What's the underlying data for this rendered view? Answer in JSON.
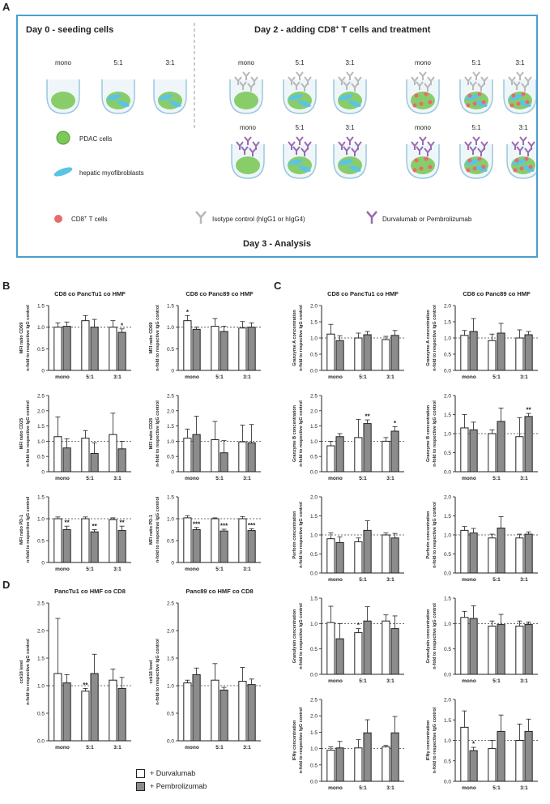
{
  "panel_letters": {
    "a": "A",
    "b": "B",
    "c": "C",
    "d": "D"
  },
  "panelA": {
    "day0_title": "Day 0 - seeding cells",
    "day2_title_prefix": "Day 2 - adding CD8",
    "day2_title_sup": "+",
    "day2_title_suffix": " T cells and treatment",
    "well_labels": [
      "mono",
      "5:1",
      "3:1"
    ],
    "legend_pdac": "PDAC cells",
    "legend_hmf": "hepatic myofibroblasts",
    "legend_cd8_prefix": "CD8",
    "legend_cd8_sup": "+",
    "legend_cd8_suffix": " T cells",
    "legend_isotype": "Isotype control (hIgG1 or hIgG4)",
    "legend_durva": "Durvalumab or Pembrolizumab",
    "day3": "Day 3 - Analysis",
    "colors": {
      "border": "#4a9fd0",
      "pdac": "#7cc95a",
      "hmf": "#5bc3e6",
      "cd8": "#e86b6b",
      "isotype": "#b8b8b8",
      "antibody": "#9a6bb0"
    }
  },
  "legend": {
    "durvalumab": "+ Durvalumab",
    "pembrolizumab": "+ Pembrolizumab"
  },
  "colors": {
    "white_bar": "#ffffff",
    "grey_bar": "#8c8c8c",
    "stroke": "#222222"
  },
  "chart_data": [
    {
      "type": "bar",
      "title": "CD8 co PancTu1 co HMF",
      "ylabel": [
        "MFI ratio CD69",
        "n-fold to respective IgG control"
      ],
      "categories": [
        "mono",
        "5:1",
        "3:1"
      ],
      "ylim": [
        0,
        1.5
      ],
      "ticks": [
        "0",
        "0.5",
        "1.0",
        "1.5"
      ],
      "tickvals": [
        0,
        0.5,
        1,
        1.5
      ],
      "series": [
        {
          "name": "+ Durvalumab",
          "values": [
            1.0,
            1.15,
            1.0
          ],
          "errors": [
            0.1,
            0.12,
            0.15
          ]
        },
        {
          "name": "+ Pembrolizumab",
          "values": [
            1.02,
            1.0,
            0.88
          ],
          "errors": [
            0.1,
            0.18,
            0.08
          ]
        }
      ],
      "sig": [
        {
          "cat": 2,
          "series": 1,
          "text": "*"
        }
      ]
    },
    {
      "type": "bar",
      "title": "CD8 co Panc89 co HMF",
      "ylabel": [
        "MFI ratio CD69",
        "n-fold to respective IgG control"
      ],
      "categories": [
        "mono",
        "5:1",
        "3:1"
      ],
      "ylim": [
        0,
        1.5
      ],
      "ticks": [
        "0",
        "0.5",
        "1.0",
        "1.5"
      ],
      "tickvals": [
        0,
        0.5,
        1,
        1.5
      ],
      "series": [
        {
          "name": "+ Durvalumab",
          "values": [
            1.15,
            1.02,
            0.98
          ],
          "errors": [
            0.12,
            0.18,
            0.15
          ]
        },
        {
          "name": "+ Pembrolizumab",
          "values": [
            0.95,
            0.9,
            1.0
          ],
          "errors": [
            0.05,
            0.12,
            0.1
          ]
        }
      ],
      "sig": [
        {
          "cat": 0,
          "series": 0,
          "text": "*"
        }
      ]
    },
    {
      "type": "bar",
      "title": "",
      "ylabel": [
        "MFI ratio CD25",
        "n-fold to respective IgG control"
      ],
      "categories": [
        "mono",
        "5:1",
        "3:1"
      ],
      "ylim": [
        0,
        2.5
      ],
      "ticks": [
        "0",
        "0.5",
        "1.0",
        "1.5",
        "2.0",
        "2.5"
      ],
      "tickvals": [
        0,
        0.5,
        1,
        1.5,
        2,
        2.5
      ],
      "series": [
        {
          "name": "+ Durvalumab",
          "values": [
            1.15,
            1.1,
            1.22
          ],
          "errors": [
            0.65,
            0.25,
            0.7
          ]
        },
        {
          "name": "+ Pembrolizumab",
          "values": [
            0.78,
            0.6,
            0.75
          ],
          "errors": [
            0.3,
            0.35,
            0.25
          ]
        }
      ],
      "sig": []
    },
    {
      "type": "bar",
      "title": "",
      "ylabel": [
        "MFI ratio CD25",
        "n-fold to respective IgG control"
      ],
      "categories": [
        "mono",
        "5:1",
        "3:1"
      ],
      "ylim": [
        0,
        2.5
      ],
      "ticks": [
        "0",
        "0.5",
        "1.0",
        "1.5",
        "2.0",
        "2.5"
      ],
      "tickvals": [
        0,
        0.5,
        1,
        1.5,
        2,
        2.5
      ],
      "series": [
        {
          "name": "+ Durvalumab",
          "values": [
            1.1,
            1.05,
            0.98
          ],
          "errors": [
            0.3,
            0.6,
            0.55
          ]
        },
        {
          "name": "+ Pembrolizumab",
          "values": [
            1.22,
            0.62,
            0.95
          ],
          "errors": [
            0.6,
            0.4,
            0.6
          ]
        }
      ],
      "sig": []
    },
    {
      "type": "bar",
      "title": "",
      "ylabel": [
        "MFI ratio PD-1",
        "n-fold to respective IgG control"
      ],
      "categories": [
        "mono",
        "5:1",
        "3:1"
      ],
      "ylim": [
        0,
        1.5
      ],
      "ticks": [
        "0",
        "0.5",
        "1.0",
        "1.5"
      ],
      "tickvals": [
        0,
        0.5,
        1,
        1.5
      ],
      "series": [
        {
          "name": "+ Durvalumab",
          "values": [
            1.0,
            1.0,
            0.98
          ],
          "errors": [
            0.04,
            0.04,
            0.04
          ]
        },
        {
          "name": "+ Pembrolizumab",
          "values": [
            0.75,
            0.7,
            0.73
          ],
          "errors": [
            0.08,
            0.05,
            0.1
          ]
        }
      ],
      "sig": [
        {
          "cat": 0,
          "series": 1,
          "text": "**"
        },
        {
          "cat": 1,
          "series": 1,
          "text": "**"
        },
        {
          "cat": 2,
          "series": 1,
          "text": "**"
        }
      ]
    },
    {
      "type": "bar",
      "title": "",
      "ylabel": [
        "MFI ratio PD-1",
        "n-fold to respective IgG control"
      ],
      "categories": [
        "mono",
        "5:1",
        "3:1"
      ],
      "ylim": [
        0,
        1.5
      ],
      "ticks": [
        "0",
        "0.5",
        "1.0",
        "1.5"
      ],
      "tickvals": [
        0,
        0.5,
        1,
        1.5
      ],
      "series": [
        {
          "name": "+ Durvalumab",
          "values": [
            1.02,
            1.0,
            1.0
          ],
          "errors": [
            0.05,
            0.02,
            0.05
          ]
        },
        {
          "name": "+ Pembrolizumab",
          "values": [
            0.75,
            0.72,
            0.73
          ],
          "errors": [
            0.05,
            0.04,
            0.04
          ]
        }
      ],
      "sig": [
        {
          "cat": 0,
          "series": 1,
          "text": "***"
        },
        {
          "cat": 1,
          "series": 1,
          "text": "***"
        },
        {
          "cat": 2,
          "series": 1,
          "text": "***"
        }
      ]
    },
    {
      "type": "bar",
      "title": "CD8 co PancTu1 co HMF",
      "ylabel": [
        "Granzyme A concentration",
        "n-fold to respective IgG control"
      ],
      "categories": [
        "mono",
        "5:1",
        "3:1"
      ],
      "ylim": [
        0,
        2.0
      ],
      "ticks": [
        "0.0",
        "0.5",
        "1.0",
        "1.5",
        "2.0"
      ],
      "tickvals": [
        0,
        0.5,
        1,
        1.5,
        2
      ],
      "series": [
        {
          "name": "+ Durvalumab",
          "values": [
            1.12,
            1.0,
            0.95
          ],
          "errors": [
            0.3,
            0.15,
            0.1
          ]
        },
        {
          "name": "+ Pembrolizumab",
          "values": [
            0.92,
            1.1,
            1.08
          ],
          "errors": [
            0.15,
            0.1,
            0.15
          ]
        }
      ],
      "sig": []
    },
    {
      "type": "bar",
      "title": "CD8 co Panc89 co HMF",
      "ylabel": [
        "Granzyme A concentration",
        "n-fold to respective IgG control"
      ],
      "categories": [
        "mono",
        "5:1",
        "3:1"
      ],
      "ylim": [
        0,
        2.0
      ],
      "ticks": [
        "0.0",
        "0.5",
        "1.0",
        "1.5",
        "2.0"
      ],
      "tickvals": [
        0,
        0.5,
        1,
        1.5,
        2
      ],
      "series": [
        {
          "name": "+ Durvalumab",
          "values": [
            1.08,
            0.92,
            1.0
          ],
          "errors": [
            0.15,
            0.2,
            0.25
          ]
        },
        {
          "name": "+ Pembrolizumab",
          "values": [
            1.2,
            1.15,
            1.1
          ],
          "errors": [
            0.4,
            0.3,
            0.1
          ]
        }
      ],
      "sig": []
    },
    {
      "type": "bar",
      "title": "",
      "ylabel": [
        "Granzyme B concentration",
        "n-fold to respective IgG control"
      ],
      "categories": [
        "mono",
        "5:1",
        "3:1"
      ],
      "ylim": [
        0,
        2.5
      ],
      "ticks": [
        "0.0",
        "0.5",
        "1.0",
        "1.5",
        "2.0",
        "2.5"
      ],
      "tickvals": [
        0,
        0.5,
        1,
        1.5,
        2,
        2.5
      ],
      "series": [
        {
          "name": "+ Durvalumab",
          "values": [
            0.85,
            1.12,
            1.0
          ],
          "errors": [
            0.15,
            0.6,
            0.12
          ]
        },
        {
          "name": "+ Pembrolizumab",
          "values": [
            1.15,
            1.58,
            1.33
          ],
          "errors": [
            0.1,
            0.12,
            0.15
          ]
        }
      ],
      "sig": [
        {
          "cat": 1,
          "series": 1,
          "text": "**"
        },
        {
          "cat": 2,
          "series": 1,
          "text": "*"
        }
      ]
    },
    {
      "type": "bar",
      "title": "",
      "ylabel": [
        "Granzyme B concentration",
        "n-fold to respective IgG control"
      ],
      "categories": [
        "mono",
        "5:1",
        "3:1"
      ],
      "ylim": [
        0,
        2.0
      ],
      "ticks": [
        "0.0",
        "0.5",
        "1.0",
        "1.5",
        "2.0"
      ],
      "tickvals": [
        0,
        0.5,
        1,
        1.5,
        2
      ],
      "series": [
        {
          "name": "+ Durvalumab",
          "values": [
            1.15,
            1.0,
            0.92
          ],
          "errors": [
            0.35,
            0.1,
            0.5
          ]
        },
        {
          "name": "+ Pembrolizumab",
          "values": [
            1.1,
            1.32,
            1.45
          ],
          "errors": [
            0.2,
            0.35,
            0.08
          ]
        }
      ],
      "sig": [
        {
          "cat": 2,
          "series": 1,
          "text": "**"
        }
      ]
    },
    {
      "type": "bar",
      "title": "",
      "ylabel": [
        "Perforin concentration",
        "n-fold to respective IgG control"
      ],
      "categories": [
        "mono",
        "5:1",
        "3:1"
      ],
      "ylim": [
        0,
        2.0
      ],
      "ticks": [
        "0.0",
        "0.5",
        "1.0",
        "1.5",
        "2.0"
      ],
      "tickvals": [
        0,
        0.5,
        1,
        1.5,
        2
      ],
      "series": [
        {
          "name": "+ Durvalumab",
          "values": [
            0.9,
            0.82,
            1.0
          ],
          "errors": [
            0.15,
            0.1,
            0.05
          ]
        },
        {
          "name": "+ Pembrolizumab",
          "values": [
            0.8,
            1.12,
            0.92
          ],
          "errors": [
            0.15,
            0.25,
            0.12
          ]
        }
      ],
      "sig": []
    },
    {
      "type": "bar",
      "title": "",
      "ylabel": [
        "Perforin concentration",
        "n-fold to respective IgG control"
      ],
      "categories": [
        "mono",
        "5:1",
        "3:1"
      ],
      "ylim": [
        0,
        2.0
      ],
      "ticks": [
        "0.0",
        "0.5",
        "1.0",
        "1.5",
        "2.0"
      ],
      "tickvals": [
        0,
        0.5,
        1,
        1.5,
        2
      ],
      "series": [
        {
          "name": "+ Durvalumab",
          "values": [
            1.12,
            0.92,
            0.92
          ],
          "errors": [
            0.1,
            0.1,
            0.1
          ]
        },
        {
          "name": "+ Pembrolizumab",
          "values": [
            1.05,
            1.18,
            1.02
          ],
          "errors": [
            0.12,
            0.3,
            0.06
          ]
        }
      ],
      "sig": []
    },
    {
      "type": "bar",
      "title": "",
      "ylabel": [
        "Granulysin concentration",
        "n-fold to respective IgG control"
      ],
      "categories": [
        "mono",
        "5:1",
        "3:1"
      ],
      "ylim": [
        0,
        1.5
      ],
      "ticks": [
        "0.0",
        "0.5",
        "1.0",
        "1.5"
      ],
      "tickvals": [
        0,
        0.5,
        1,
        1.5
      ],
      "series": [
        {
          "name": "+ Durvalumab",
          "values": [
            1.02,
            0.82,
            1.05
          ],
          "errors": [
            0.32,
            0.08,
            0.12
          ]
        },
        {
          "name": "+ Pembrolizumab",
          "values": [
            0.7,
            1.05,
            0.9
          ],
          "errors": [
            0.3,
            0.28,
            0.25
          ]
        }
      ],
      "sig": [
        {
          "cat": 1,
          "series": 0,
          "text": "*"
        }
      ]
    },
    {
      "type": "bar",
      "title": "",
      "ylabel": [
        "Granulysin concentration",
        "n-fold to respective IgG control"
      ],
      "categories": [
        "mono",
        "5:1",
        "3:1"
      ],
      "ylim": [
        0,
        1.5
      ],
      "ticks": [
        "0.0",
        "0.5",
        "1.0",
        "1.5"
      ],
      "tickvals": [
        0,
        0.5,
        1,
        1.5
      ],
      "series": [
        {
          "name": "+ Durvalumab",
          "values": [
            1.12,
            0.95,
            0.95
          ],
          "errors": [
            0.12,
            0.1,
            0.1
          ]
        },
        {
          "name": "+ Pembrolizumab",
          "values": [
            1.1,
            0.98,
            0.98
          ],
          "errors": [
            0.25,
            0.2,
            0.05
          ]
        }
      ],
      "sig": []
    },
    {
      "type": "bar",
      "title": "",
      "ylabel": [
        "IFNγ concentration",
        "n-fold to respective IgG control"
      ],
      "categories": [
        "mono",
        "5:1",
        "3:1"
      ],
      "ylim": [
        0,
        2.5
      ],
      "ticks": [
        "0.0",
        "0.5",
        "1.0",
        "1.5",
        "2.0",
        "2.5"
      ],
      "tickvals": [
        0,
        0.5,
        1,
        1.5,
        2,
        2.5
      ],
      "series": [
        {
          "name": "+ Durvalumab",
          "values": [
            0.95,
            1.02,
            1.05
          ],
          "errors": [
            0.1,
            0.25,
            0.05
          ]
        },
        {
          "name": "+ Pembrolizumab",
          "values": [
            1.02,
            1.48,
            1.48
          ],
          "errors": [
            0.2,
            0.4,
            0.5
          ]
        }
      ],
      "sig": []
    },
    {
      "type": "bar",
      "title": "",
      "ylabel": [
        "IFNγ concentration",
        "n-fold to respective IgG control"
      ],
      "categories": [
        "mono",
        "5:1",
        "3:1"
      ],
      "ylim": [
        0,
        2.0
      ],
      "ticks": [
        "0.0",
        "0.5",
        "1.0",
        "1.5",
        "2.0"
      ],
      "tickvals": [
        0,
        0.5,
        1,
        1.5,
        2
      ],
      "series": [
        {
          "name": "+ Durvalumab",
          "values": [
            1.32,
            0.8,
            1.0
          ],
          "errors": [
            0.4,
            0.2,
            0.4
          ]
        },
        {
          "name": "+ Pembrolizumab",
          "values": [
            0.75,
            1.22,
            1.22
          ],
          "errors": [
            0.08,
            0.4,
            0.3
          ]
        }
      ],
      "sig": [
        {
          "cat": 0,
          "series": 1,
          "text": "*"
        }
      ]
    },
    {
      "type": "bar",
      "title": "PancTu1 co HMF co CD8",
      "ylabel": [
        "cck18 level",
        "n-fold to respective IgG control"
      ],
      "categories": [
        "mono",
        "5:1",
        "3:1"
      ],
      "ylim": [
        0,
        2.5
      ],
      "ticks": [
        "0.0",
        "0.5",
        "1.0",
        "1.5",
        "2.0",
        "2.5"
      ],
      "tickvals": [
        0,
        0.5,
        1,
        1.5,
        2,
        2.5
      ],
      "series": [
        {
          "name": "+ Durvalumab",
          "values": [
            1.22,
            0.9,
            1.1
          ],
          "errors": [
            1.0,
            0.05,
            0.2
          ]
        },
        {
          "name": "+ Pembrolizumab",
          "values": [
            1.05,
            1.22,
            0.95
          ],
          "errors": [
            0.15,
            0.35,
            0.2
          ]
        }
      ],
      "sig": [
        {
          "cat": 1,
          "series": 0,
          "text": "**"
        }
      ]
    },
    {
      "type": "bar",
      "title": "Panc89 co HMF co CD8",
      "ylabel": [
        "cck18 level",
        "n-fold to respective IgG control"
      ],
      "categories": [
        "mono",
        "5:1",
        "3:1"
      ],
      "ylim": [
        0,
        2.5
      ],
      "ticks": [
        "0.0",
        "0.5",
        "1.0",
        "1.5",
        "2.0",
        "2.5"
      ],
      "tickvals": [
        0,
        0.5,
        1,
        1.5,
        2,
        2.5
      ],
      "series": [
        {
          "name": "+ Durvalumab",
          "values": [
            1.05,
            1.1,
            1.08
          ],
          "errors": [
            0.05,
            0.3,
            0.25
          ]
        },
        {
          "name": "+ Pembrolizumab",
          "values": [
            1.2,
            0.92,
            1.02
          ],
          "errors": [
            0.12,
            0.05,
            0.1
          ]
        }
      ],
      "sig": []
    }
  ]
}
